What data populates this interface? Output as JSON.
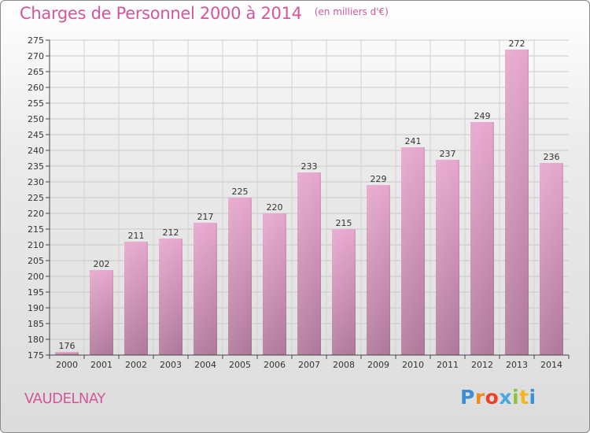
{
  "chart_data": {
    "type": "bar",
    "title": "Charges de Personnel 2000 à 2014",
    "subtitle": "(en milliers d'€)",
    "categories": [
      "2000",
      "2001",
      "2002",
      "2003",
      "2004",
      "2005",
      "2006",
      "2007",
      "2008",
      "2009",
      "2010",
      "2011",
      "2012",
      "2013",
      "2014"
    ],
    "values": [
      176,
      202,
      211,
      212,
      217,
      225,
      220,
      233,
      215,
      229,
      241,
      237,
      249,
      272,
      236
    ],
    "ylim": [
      175,
      275
    ],
    "ytick_step": 5,
    "grid": true,
    "xlabel": "",
    "ylabel": "",
    "bar_color_top": "#e6a7cd",
    "bar_color_bottom": "#b0789a"
  },
  "commune": "VAUDELNAY",
  "logo": {
    "text": "Proxiti",
    "letters": [
      "P",
      "r",
      "o",
      "x",
      "i",
      "t",
      "i"
    ],
    "colors": [
      "#3a8fd6",
      "#f08c1e",
      "#e8412b",
      "#4aa8e0",
      "#8ac43f",
      "#f3b61f",
      "#3a8fd6"
    ]
  }
}
